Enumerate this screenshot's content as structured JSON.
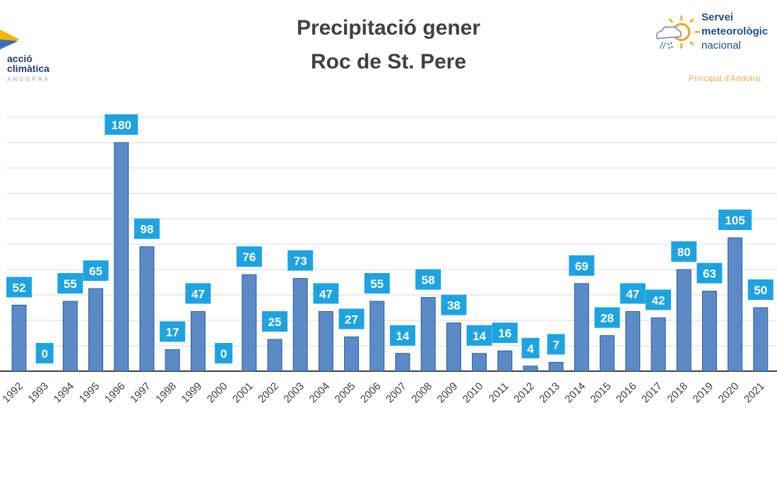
{
  "logos": {
    "left": {
      "line1": "acció",
      "line2": "climàtica",
      "line3": "ANDORRA"
    },
    "right": {
      "line1": "Servei",
      "line2": "meteorològic",
      "line3": "nacional",
      "line4": "Principat d'Andorra"
    }
  },
  "chart_data": {
    "type": "bar",
    "title": "Precipitació gener\nRoc de St. Pere",
    "title_lines": [
      "Precipitació gener",
      "Roc de St. Pere"
    ],
    "xlabel": "",
    "ylabel": "",
    "categories": [
      "1992",
      "1993",
      "1994",
      "1995",
      "1996",
      "1997",
      "1998",
      "1999",
      "2000",
      "2001",
      "2002",
      "2003",
      "2004",
      "2005",
      "2006",
      "2007",
      "2008",
      "2009",
      "2010",
      "2011",
      "2012",
      "2013",
      "2014",
      "2015",
      "2016",
      "2017",
      "2018",
      "2019",
      "2020",
      "2021"
    ],
    "values": [
      52,
      0,
      55,
      65,
      180,
      98,
      17,
      47,
      0,
      76,
      25,
      73,
      47,
      27,
      55,
      14,
      58,
      38,
      14,
      16,
      4,
      7,
      69,
      28,
      47,
      42,
      80,
      63,
      105,
      50
    ],
    "ylim": [
      0,
      200
    ],
    "grid": true,
    "legend": "none",
    "colors": {
      "bar": "#5b8ac6",
      "bar_edge": "#2f5d95",
      "label_bg": "#1fa3e0",
      "label_text": "#ffffff",
      "grid": "#d9d9d9"
    }
  }
}
